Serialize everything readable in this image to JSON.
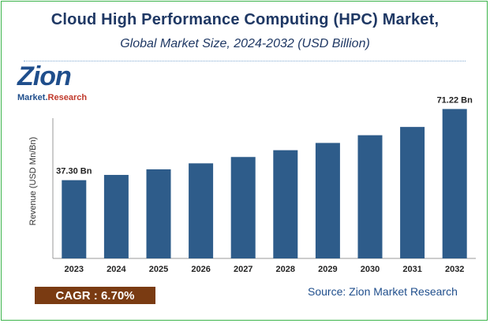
{
  "title": "Cloud High Performance Computing (HPC) Market,",
  "subtitle": "Global Market Size, 2024-2032 (USD Billion)",
  "logo": {
    "word": "Zion",
    "sub_left": "Market.",
    "sub_right": "Research"
  },
  "cagr": {
    "label": "CAGR : ",
    "value": "6.70%"
  },
  "source": "Source: Zion Market Research",
  "chart_data": {
    "type": "bar",
    "title": "Cloud High Performance Computing (HPC) Market,",
    "subtitle": "Global Market Size, 2024-2032 (USD Billion)",
    "ylabel": "Revenue (USD Mn/Bn)",
    "xlabel": "",
    "categories": [
      "2023",
      "2024",
      "2025",
      "2026",
      "2027",
      "2028",
      "2029",
      "2030",
      "2031",
      "2032"
    ],
    "values": [
      37.3,
      39.8,
      42.47,
      45.32,
      48.35,
      51.59,
      55.05,
      58.73,
      62.67,
      71.22
    ],
    "ylim": [
      0,
      80
    ],
    "data_labels": [
      {
        "index": 0,
        "text": "37.30 Bn"
      },
      {
        "index": 9,
        "text": "71.22 Bn"
      }
    ],
    "bar_color": "#2e5c8a",
    "grid": false,
    "legend": "none"
  }
}
